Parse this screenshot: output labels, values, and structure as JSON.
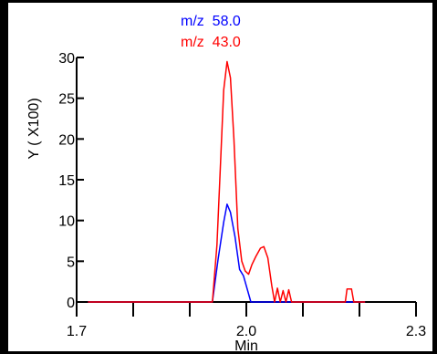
{
  "chart_data": {
    "type": "line",
    "title": "",
    "xlabel": "Min",
    "ylabel": "Y ( X100)",
    "xlim": [
      1.7,
      2.3
    ],
    "ylim": [
      0,
      30
    ],
    "x_ticks": [
      1.7,
      2.0,
      2.3
    ],
    "x_tick_labels": [
      "1.7",
      "2.0",
      "2.3"
    ],
    "x_minor_ticks": [
      1.8,
      1.9,
      2.1,
      2.2
    ],
    "y_ticks": [
      0,
      5,
      10,
      15,
      20,
      25,
      30
    ],
    "y_tick_labels": [
      "0",
      "5",
      "10",
      "15",
      "20",
      "25",
      "30"
    ],
    "grid": false,
    "legend_position": "top-center",
    "series": [
      {
        "name": "m/z  58.0",
        "color": "#0000ff",
        "points": [
          [
            1.72,
            0.0
          ],
          [
            1.94,
            0.0
          ],
          [
            1.95,
            5.2
          ],
          [
            1.96,
            9.8
          ],
          [
            1.966,
            12.0
          ],
          [
            1.972,
            11.0
          ],
          [
            1.98,
            8.0
          ],
          [
            1.988,
            4.0
          ],
          [
            1.995,
            3.2
          ],
          [
            2.008,
            0.0
          ],
          [
            2.21,
            0.0
          ]
        ]
      },
      {
        "name": "m/z  43.0",
        "color": "#ff0000",
        "points": [
          [
            1.72,
            0.0
          ],
          [
            1.94,
            0.0
          ],
          [
            1.948,
            7.0
          ],
          [
            1.955,
            18.0
          ],
          [
            1.96,
            26.0
          ],
          [
            1.966,
            29.5
          ],
          [
            1.972,
            27.5
          ],
          [
            1.978,
            20.0
          ],
          [
            1.985,
            9.0
          ],
          [
            1.992,
            5.0
          ],
          [
            1.998,
            3.8
          ],
          [
            2.004,
            3.4
          ],
          [
            2.01,
            4.6
          ],
          [
            2.017,
            5.6
          ],
          [
            2.025,
            6.6
          ],
          [
            2.031,
            6.8
          ],
          [
            2.038,
            5.4
          ],
          [
            2.045,
            2.0
          ],
          [
            2.05,
            0.0
          ],
          [
            2.055,
            1.7
          ],
          [
            2.06,
            0.0
          ],
          [
            2.065,
            1.4
          ],
          [
            2.07,
            0.0
          ],
          [
            2.075,
            1.5
          ],
          [
            2.08,
            0.0
          ],
          [
            2.175,
            0.0
          ],
          [
            2.178,
            1.6
          ],
          [
            2.186,
            1.6
          ],
          [
            2.19,
            0.0
          ],
          [
            2.21,
            0.0
          ]
        ]
      }
    ]
  }
}
